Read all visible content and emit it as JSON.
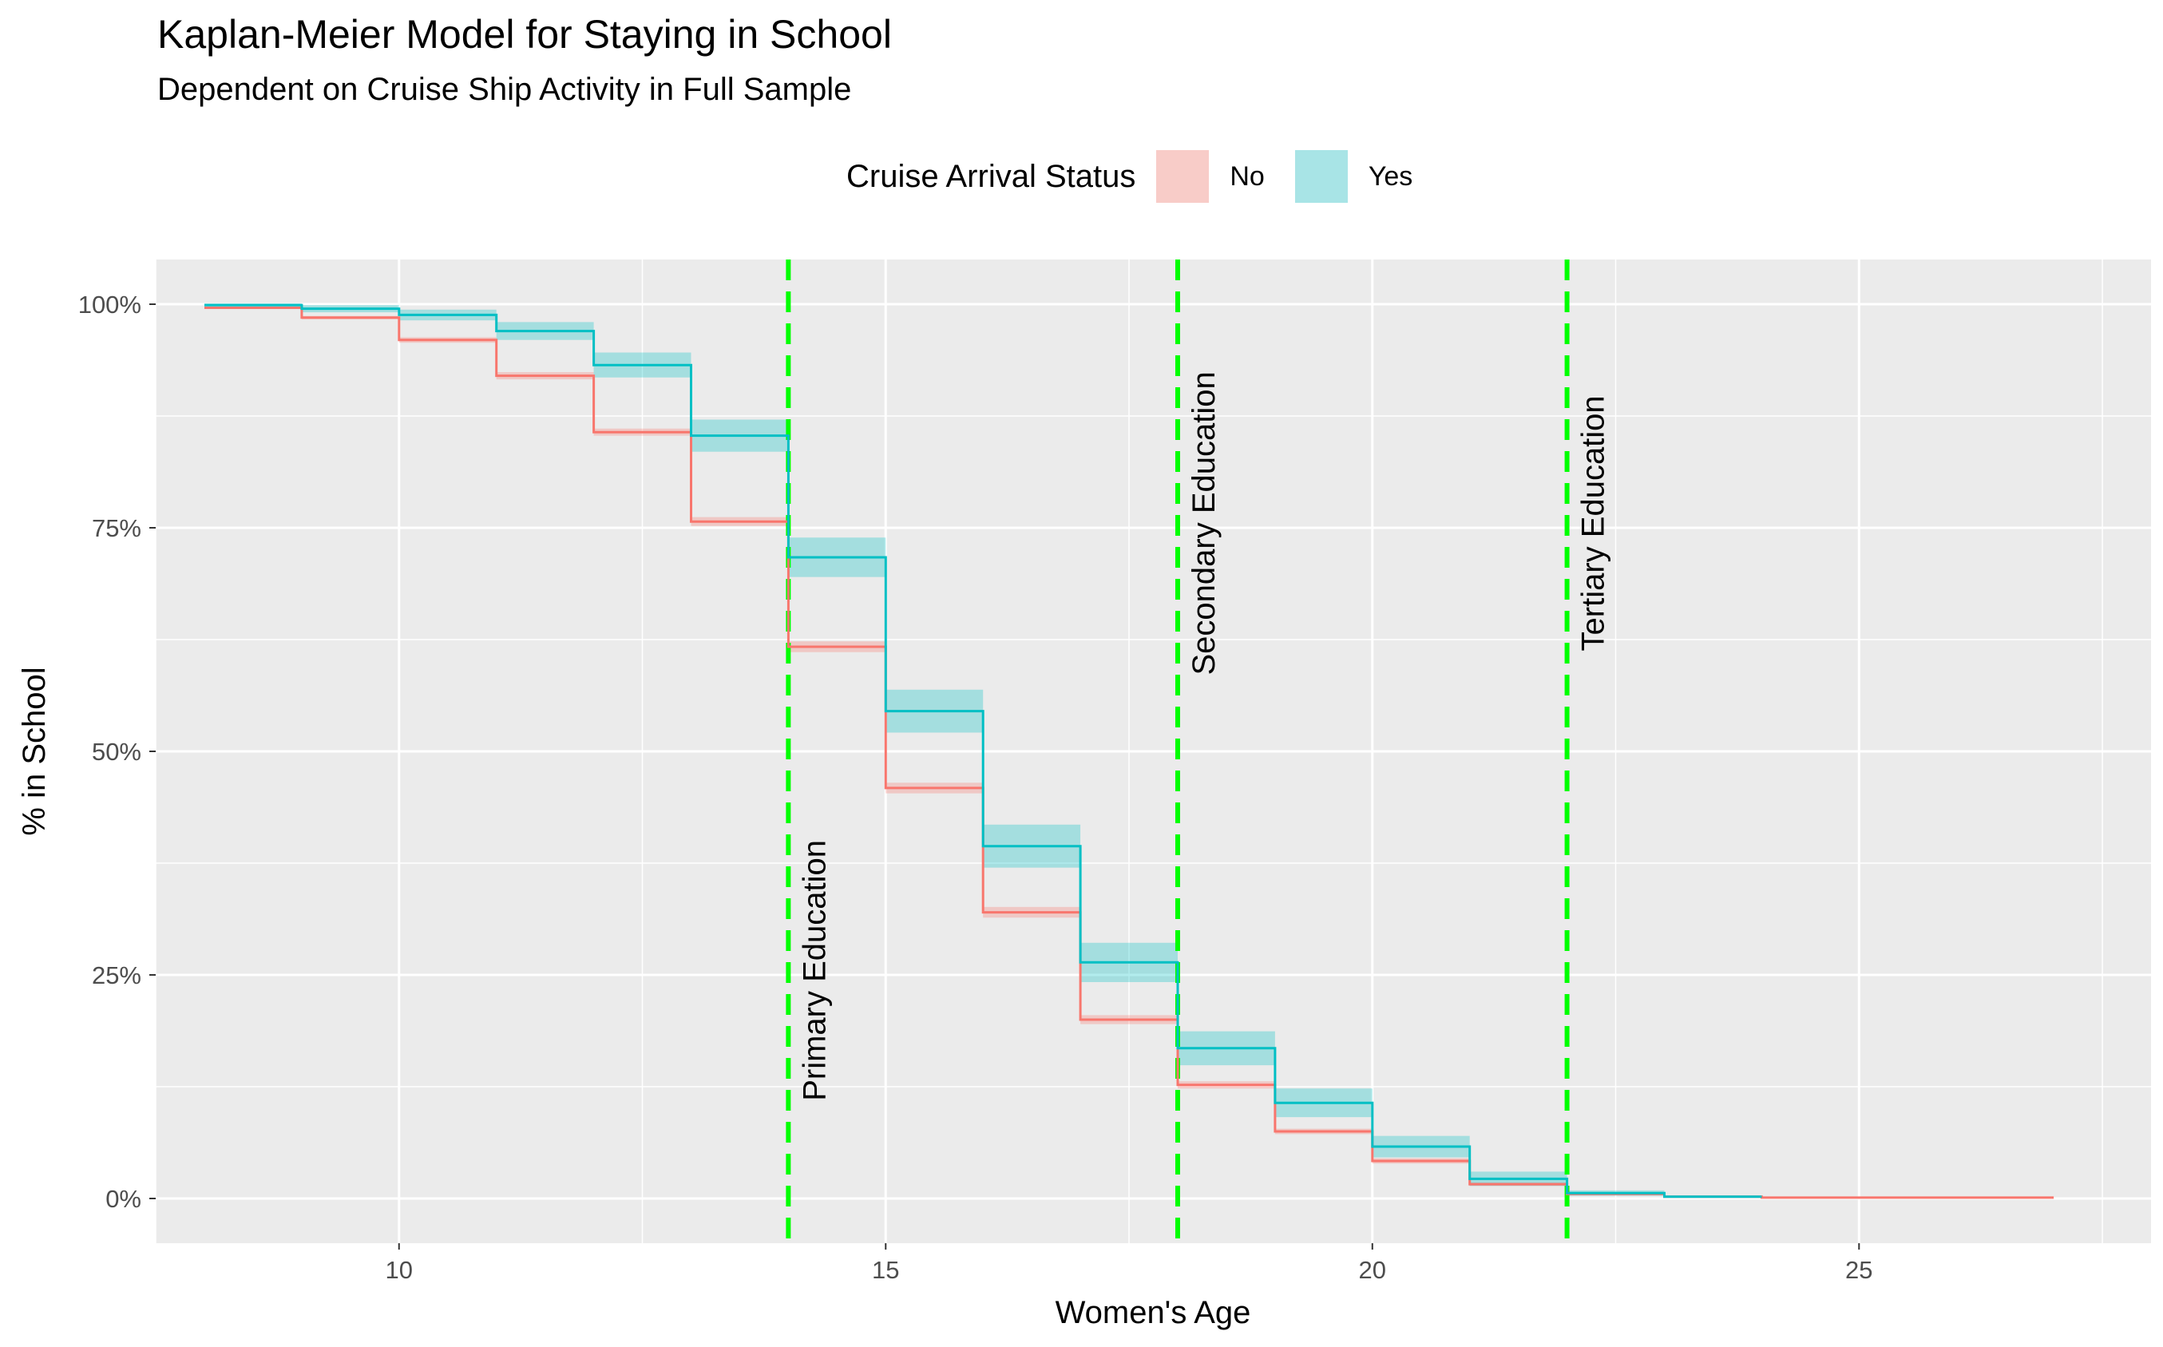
{
  "chart_data": {
    "type": "line",
    "title": "Kaplan-Meier Model for Staying in School",
    "subtitle": "Dependent on Cruise Ship Activity in Full Sample",
    "xlabel": "Women's Age",
    "ylabel": "% in School",
    "xlim": [
      7.5,
      28
    ],
    "ylim": [
      -0.05,
      1.05
    ],
    "x_ticks": [
      10,
      15,
      20,
      25
    ],
    "y_ticks": [
      0,
      0.25,
      0.5,
      0.75,
      1.0
    ],
    "y_tick_labels": [
      "0%",
      "25%",
      "50%",
      "75%",
      "100%"
    ],
    "grid": true,
    "legend": {
      "title": "Cruise Arrival Status",
      "position": "top",
      "entries": [
        "No",
        "Yes"
      ]
    },
    "series": [
      {
        "name": "No",
        "color": "#F8766D",
        "steps": [
          {
            "x": 8,
            "y": 0.996
          },
          {
            "x": 9,
            "y": 0.985
          },
          {
            "x": 10,
            "y": 0.96
          },
          {
            "x": 11,
            "y": 0.92
          },
          {
            "x": 12,
            "y": 0.857
          },
          {
            "x": 13,
            "y": 0.757
          },
          {
            "x": 14,
            "y": 0.617
          },
          {
            "x": 15,
            "y": 0.459
          },
          {
            "x": 16,
            "y": 0.32
          },
          {
            "x": 17,
            "y": 0.2
          },
          {
            "x": 18,
            "y": 0.127
          },
          {
            "x": 19,
            "y": 0.075
          },
          {
            "x": 20,
            "y": 0.042
          },
          {
            "x": 21,
            "y": 0.016
          },
          {
            "x": 22,
            "y": 0.005
          },
          {
            "x": 23,
            "y": 0.002
          },
          {
            "x": 24,
            "y": 0.001
          }
        ],
        "end_x": 27,
        "ci_halfwidth": [
          0.001,
          0.002,
          0.003,
          0.004,
          0.004,
          0.005,
          0.006,
          0.006,
          0.006,
          0.005,
          0.004,
          0.003,
          0.003,
          0.002,
          0.001,
          0.001,
          0.0005
        ]
      },
      {
        "name": "Yes",
        "color": "#00BFC4",
        "steps": [
          {
            "x": 8,
            "y": 0.999
          },
          {
            "x": 9,
            "y": 0.995
          },
          {
            "x": 10,
            "y": 0.988
          },
          {
            "x": 11,
            "y": 0.97
          },
          {
            "x": 12,
            "y": 0.932
          },
          {
            "x": 13,
            "y": 0.853
          },
          {
            "x": 14,
            "y": 0.717
          },
          {
            "x": 15,
            "y": 0.545
          },
          {
            "x": 16,
            "y": 0.394
          },
          {
            "x": 17,
            "y": 0.264
          },
          {
            "x": 18,
            "y": 0.168
          },
          {
            "x": 19,
            "y": 0.107
          },
          {
            "x": 20,
            "y": 0.058
          },
          {
            "x": 21,
            "y": 0.022
          },
          {
            "x": 22,
            "y": 0.006
          },
          {
            "x": 23,
            "y": 0.002
          }
        ],
        "end_x": 24,
        "ci_halfwidth": [
          0.002,
          0.004,
          0.006,
          0.01,
          0.014,
          0.018,
          0.022,
          0.024,
          0.024,
          0.022,
          0.019,
          0.016,
          0.012,
          0.008,
          0.003,
          0.001
        ]
      }
    ],
    "reference_lines": [
      {
        "x": 14,
        "label": "Primary Education",
        "label_y_range": [
          0.09,
          0.42
        ],
        "color": "#00FF00"
      },
      {
        "x": 18,
        "label": "Secondary Education",
        "label_y_range": [
          0.56,
          0.95
        ],
        "color": "#00FF00"
      },
      {
        "x": 22,
        "label": "Tertiary Education",
        "label_y_range": [
          0.59,
          0.92
        ],
        "color": "#00FF00"
      }
    ]
  },
  "colors": {
    "panel_background": "#EBEBEB",
    "grid": "#FFFFFF",
    "reference_line": "#00FF00"
  }
}
